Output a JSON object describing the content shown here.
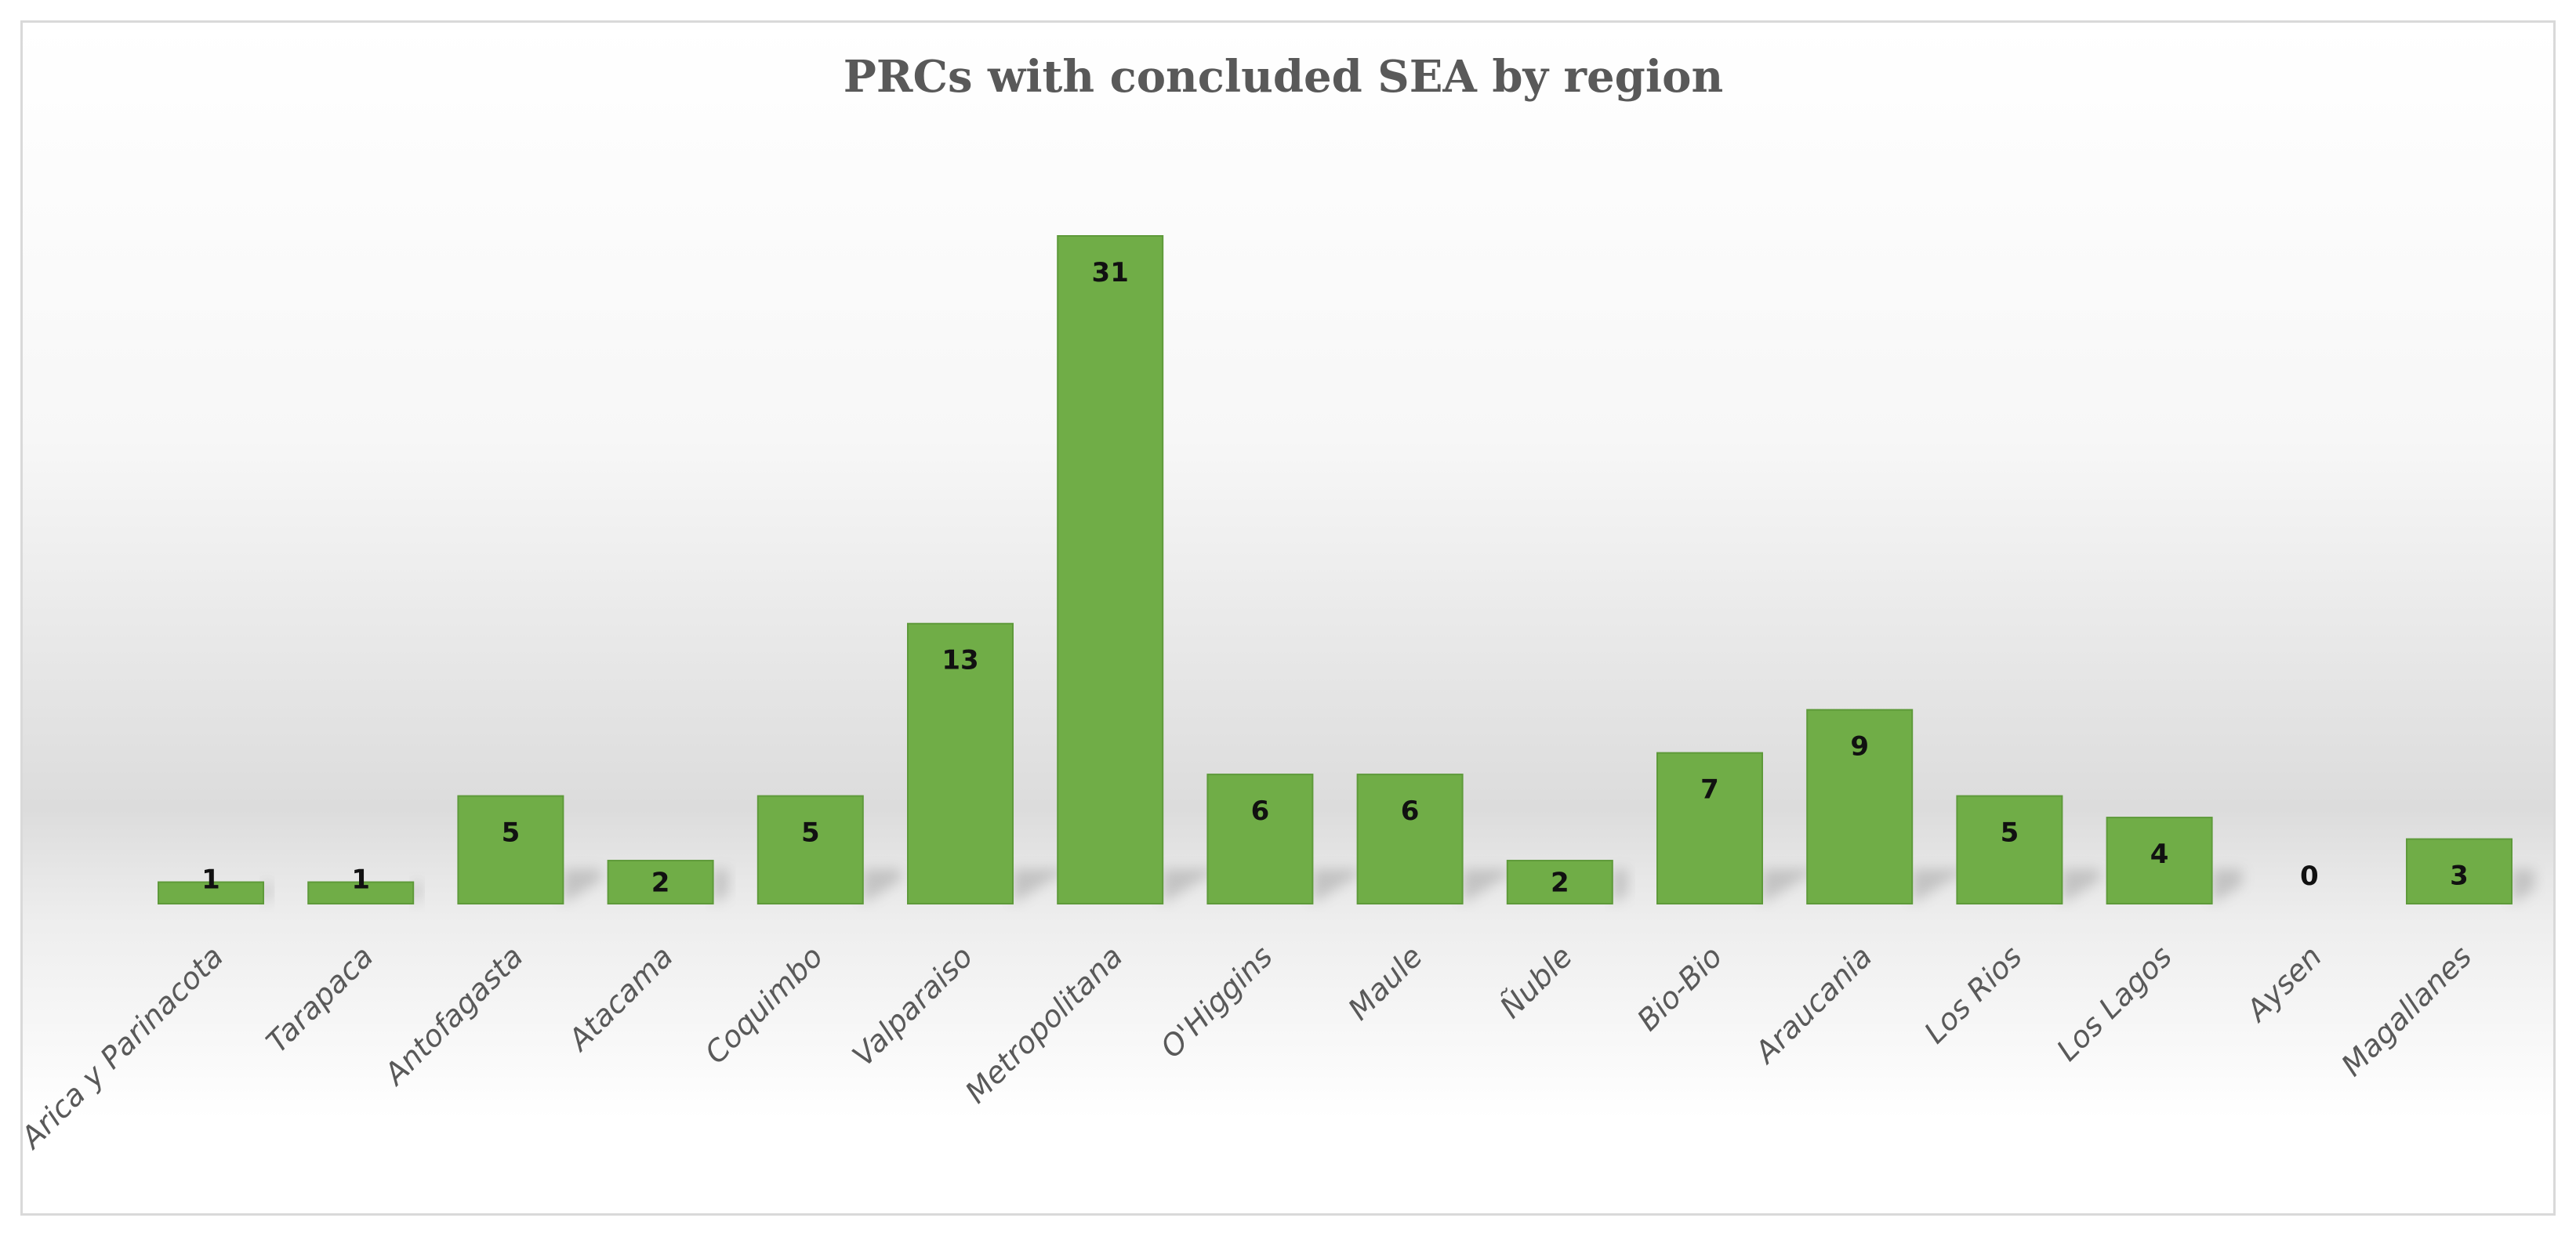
{
  "chart_data": {
    "type": "bar",
    "title": "PRCs with concluded SEA by region",
    "xlabel": "",
    "ylabel": "",
    "ylim": [
      0,
      31
    ],
    "grid": false,
    "legend": "none",
    "categories": [
      "Arica y Parinacota",
      "Tarapaca",
      "Antofagasta",
      "Atacama",
      "Coquimbo",
      "Valparaiso",
      "Metropolitana",
      "O'Higgins",
      "Maule",
      "Ñuble",
      "Bio-Bio",
      "Araucania",
      "Los Rios",
      "Los Lagos",
      "Aysen",
      "Magallanes"
    ],
    "values": [
      1,
      1,
      5,
      2,
      5,
      13,
      31,
      6,
      6,
      2,
      7,
      9,
      5,
      4,
      0,
      3
    ],
    "colors": {
      "bar": "#70ad47",
      "bar_edge": "#5e9a3a",
      "shadow": "#7f7f7f"
    }
  }
}
